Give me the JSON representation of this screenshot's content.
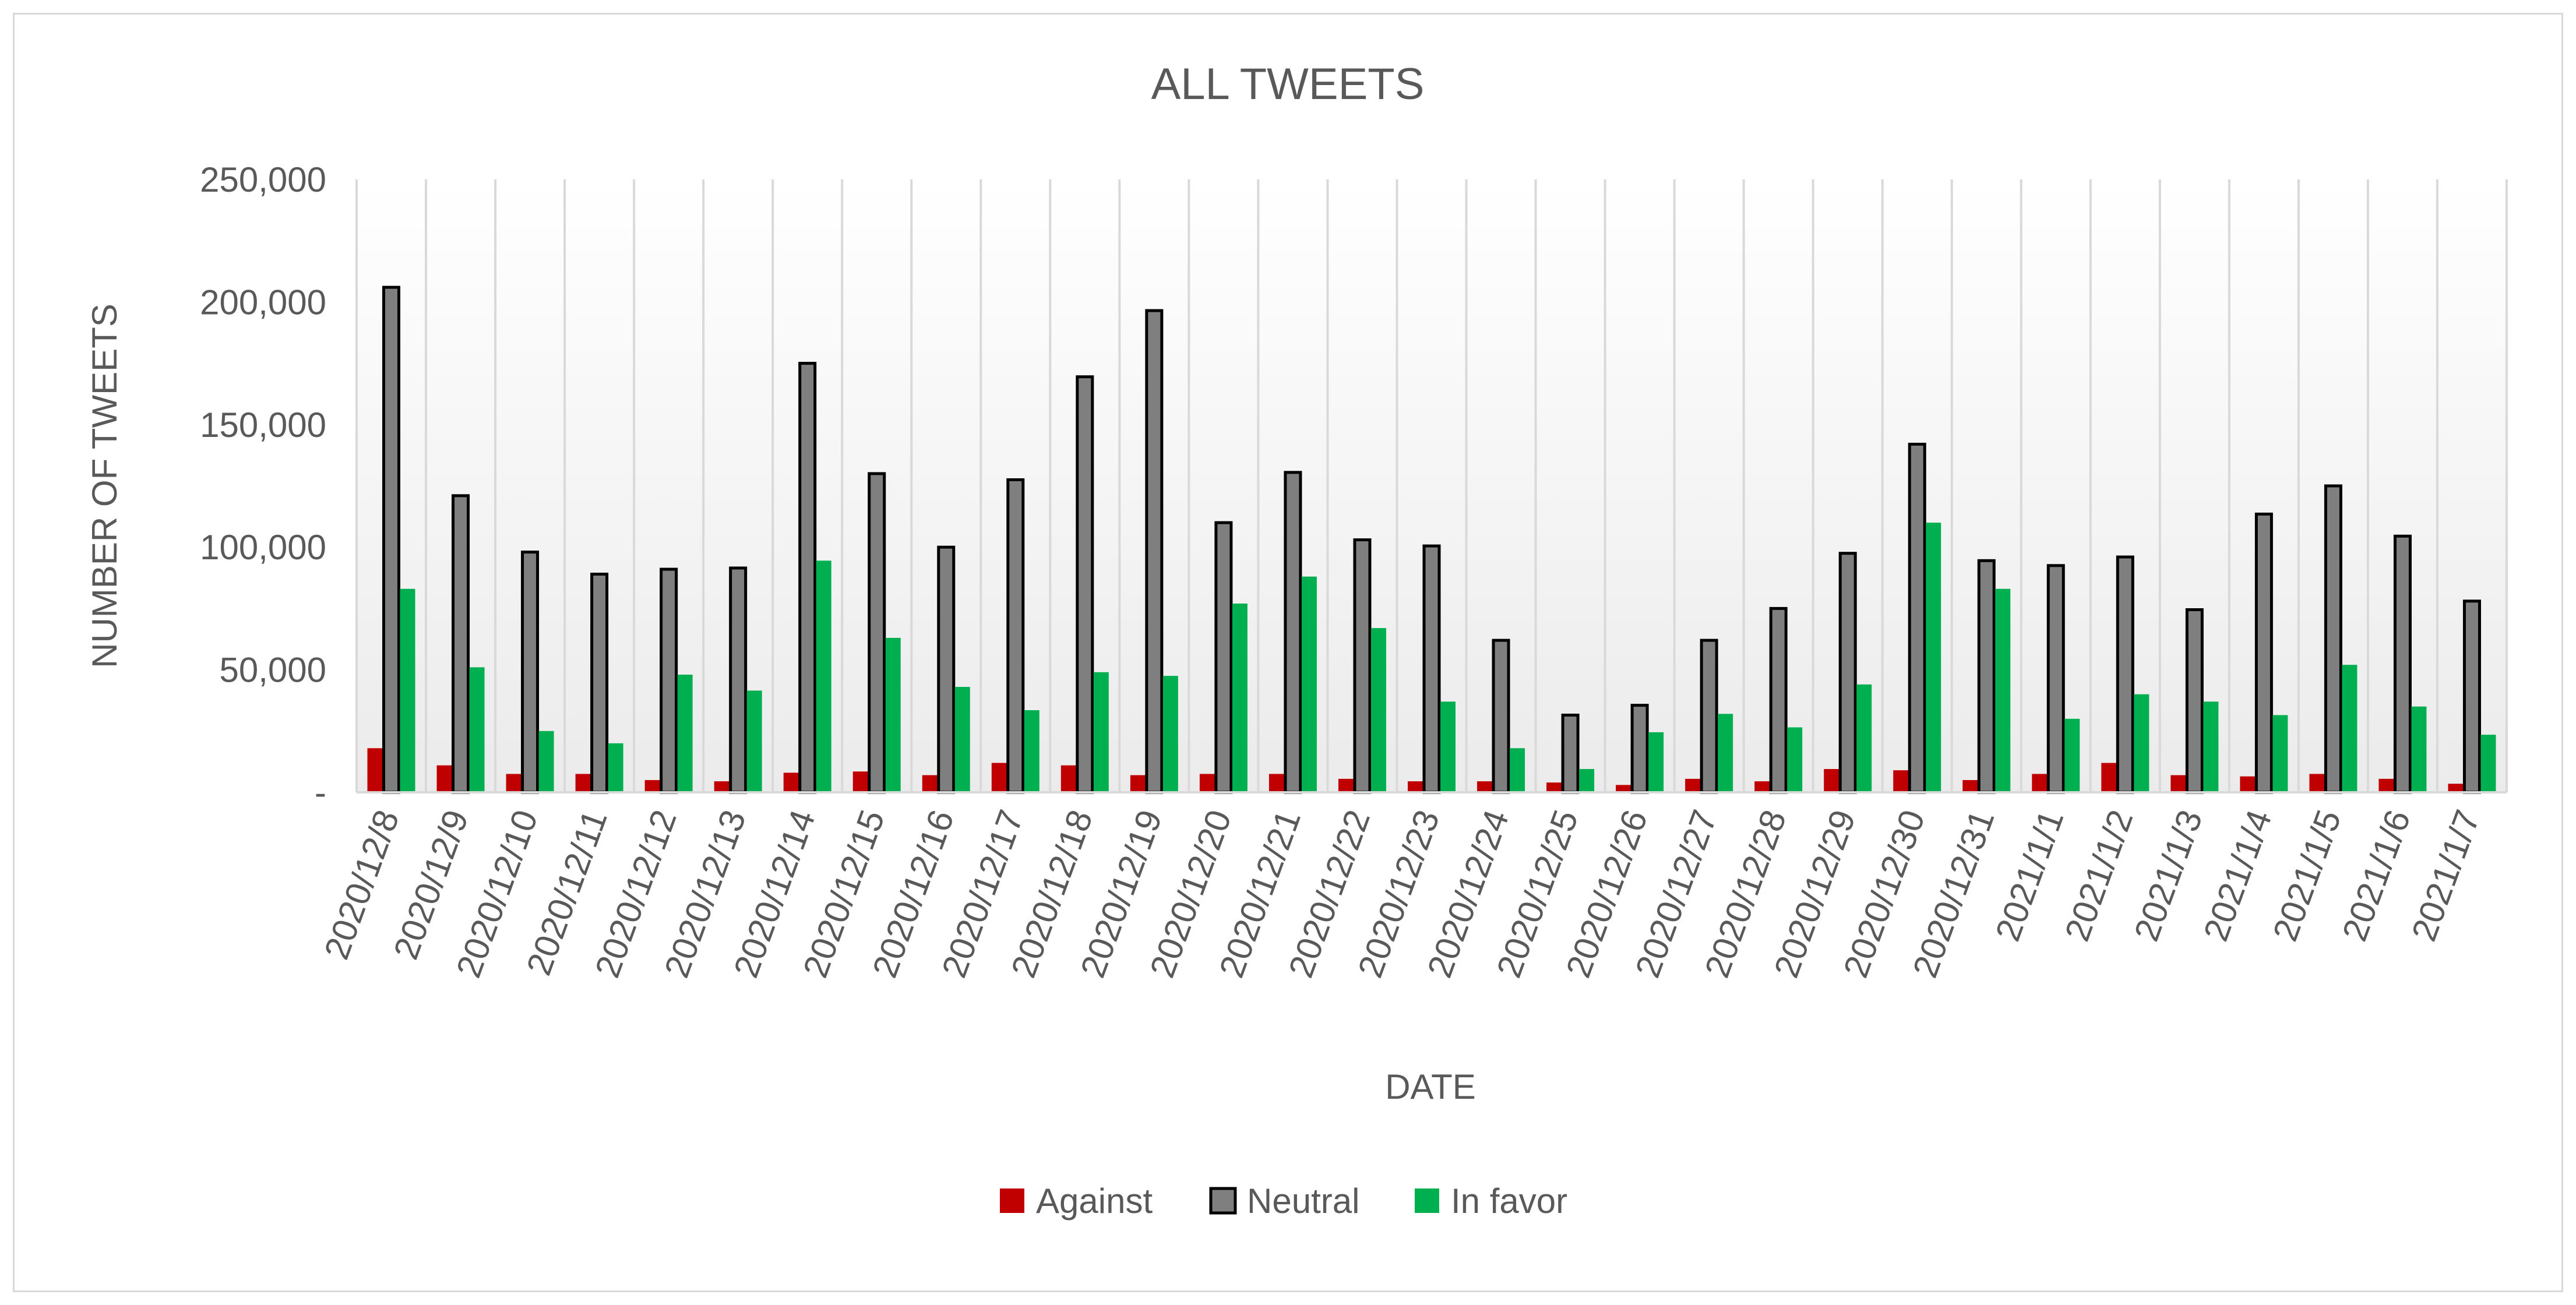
{
  "chart_data": {
    "type": "bar",
    "title": "ALL TWEETS",
    "xlabel": "DATE",
    "ylabel": "NUMBER OF TWEETS",
    "ylim": [
      0,
      250000
    ],
    "yticks": [
      {
        "value": 0,
        "label": "-"
      },
      {
        "value": 50000,
        "label": "50,000"
      },
      {
        "value": 100000,
        "label": "100,000"
      },
      {
        "value": 150000,
        "label": "150,000"
      },
      {
        "value": 200000,
        "label": "200,000"
      },
      {
        "value": 250000,
        "label": "250,000"
      }
    ],
    "grid": "vertical",
    "legend": "bottom",
    "categories": [
      "2020/12/8",
      "2020/12/9",
      "2020/12/10",
      "2020/12/11",
      "2020/12/12",
      "2020/12/13",
      "2020/12/14",
      "2020/12/15",
      "2020/12/16",
      "2020/12/17",
      "2020/12/18",
      "2020/12/19",
      "2020/12/20",
      "2020/12/21",
      "2020/12/22",
      "2020/12/23",
      "2020/12/24",
      "2020/12/25",
      "2020/12/26",
      "2020/12/27",
      "2020/12/28",
      "2020/12/29",
      "2020/12/30",
      "2020/12/31",
      "2021/1/1",
      "2021/1/2",
      "2021/1/3",
      "2021/1/4",
      "2021/1/5",
      "2021/1/6",
      "2021/1/7"
    ],
    "series": [
      {
        "name": "Against",
        "color": "#c00000",
        "stroke": "none",
        "values": [
          18000,
          11000,
          7500,
          7500,
          5000,
          4500,
          8000,
          8500,
          7000,
          12000,
          11000,
          7000,
          7500,
          7500,
          5500,
          4500,
          4500,
          4000,
          3000,
          5500,
          4500,
          9500,
          9000,
          5000,
          7500,
          12000,
          7000,
          6500,
          7500,
          5500,
          3500
        ]
      },
      {
        "name": "Neutral",
        "color": "#7f7f7f",
        "stroke": "#000000",
        "values": [
          206000,
          121000,
          98000,
          89000,
          91000,
          91500,
          175000,
          130000,
          100000,
          127500,
          169500,
          196500,
          110000,
          130500,
          103000,
          100500,
          62000,
          31500,
          35500,
          62000,
          75000,
          97500,
          142000,
          94500,
          92500,
          96000,
          74500,
          113500,
          125000,
          104500,
          78000
        ]
      },
      {
        "name": "In favor",
        "color": "#00b050",
        "stroke": "none",
        "values": [
          83000,
          51000,
          25000,
          20000,
          48000,
          41500,
          94500,
          63000,
          43000,
          33500,
          49000,
          47500,
          77000,
          88000,
          67000,
          37000,
          18000,
          9500,
          24500,
          32000,
          26500,
          44000,
          110000,
          83000,
          30000,
          40000,
          37000,
          31500,
          52000,
          35000,
          23500
        ]
      }
    ]
  }
}
